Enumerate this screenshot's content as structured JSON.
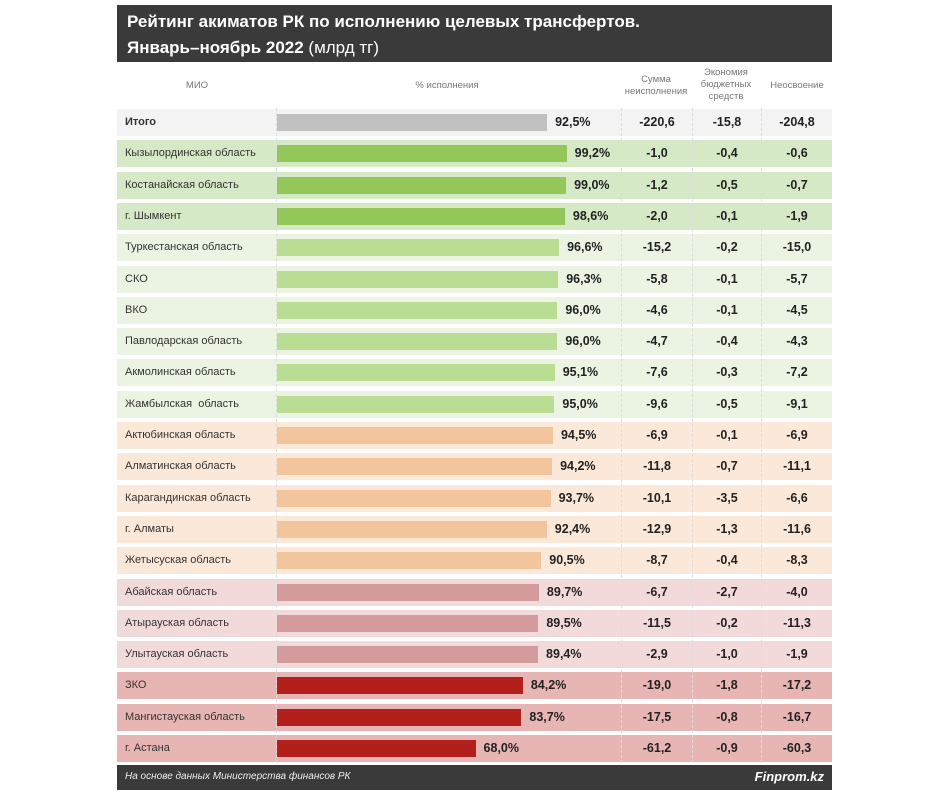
{
  "header": {
    "title_line1": "Рейтинг акиматов РК по исполнению целевых трансфертов.",
    "title_line2_bold": "Январь–ноябрь 2022",
    "title_line2_unit": " (млрд тг)"
  },
  "columns": {
    "mio": "МИО",
    "pct": "% исполнения",
    "sum": "Сумма неисполнения",
    "econ": "Экономия бюджетных средств",
    "neosv": "Неосвоение"
  },
  "colors": {
    "total": [
      "#f3f3f3",
      "#c0c0c0"
    ],
    "top": [
      "#d6e9c6",
      "#94c75a"
    ],
    "good": [
      "#ebf4e2",
      "#b9dd92"
    ],
    "mid": [
      "#fce8d8",
      "#f3c59d"
    ],
    "low": [
      "#f3dada",
      "#d39b9b"
    ],
    "bad": [
      "#e8b5b5",
      "#b3201c"
    ]
  },
  "chart_data": {
    "type": "table",
    "title": "Рейтинг акиматов РК по исполнению целевых трансфертов. Январь–ноябрь 2022 (млрд тг)",
    "rows": [
      {
        "name": "Итого",
        "pct": "92,5%",
        "value": 92.5,
        "sum": "-220,6",
        "econ": "-15,8",
        "neosv": "-204,8",
        "tier": "total"
      },
      {
        "name": "Кызылординская область",
        "pct": "99,2%",
        "value": 99.2,
        "sum": "-1,0",
        "econ": "-0,4",
        "neosv": "-0,6",
        "tier": "top"
      },
      {
        "name": "Костанайская область",
        "pct": "99,0%",
        "value": 99.0,
        "sum": "-1,2",
        "econ": "-0,5",
        "neosv": "-0,7",
        "tier": "top"
      },
      {
        "name": "г. Шымкент",
        "pct": "98,6%",
        "value": 98.6,
        "sum": "-2,0",
        "econ": "-0,1",
        "neosv": "-1,9",
        "tier": "top"
      },
      {
        "name": "Туркестанская область",
        "pct": "96,6%",
        "value": 96.6,
        "sum": "-15,2",
        "econ": "-0,2",
        "neosv": "-15,0",
        "tier": "good"
      },
      {
        "name": "СКО",
        "pct": "96,3%",
        "value": 96.3,
        "sum": "-5,8",
        "econ": "-0,1",
        "neosv": "-5,7",
        "tier": "good"
      },
      {
        "name": "ВКО",
        "pct": "96,0%",
        "value": 96.0,
        "sum": "-4,6",
        "econ": "-0,1",
        "neosv": "-4,5",
        "tier": "good"
      },
      {
        "name": "Павлодарская область",
        "pct": "96,0%",
        "value": 96.0,
        "sum": "-4,7",
        "econ": "-0,4",
        "neosv": "-4,3",
        "tier": "good"
      },
      {
        "name": "Акмолинская область",
        "pct": "95,1%",
        "value": 95.1,
        "sum": "-7,6",
        "econ": "-0,3",
        "neosv": "-7,2",
        "tier": "good"
      },
      {
        "name": "Жамбылская  область",
        "pct": "95,0%",
        "value": 95.0,
        "sum": "-9,6",
        "econ": "-0,5",
        "neosv": "-9,1",
        "tier": "good"
      },
      {
        "name": "Актюбинская область",
        "pct": "94,5%",
        "value": 94.5,
        "sum": "-6,9",
        "econ": "-0,1",
        "neosv": "-6,9",
        "tier": "mid"
      },
      {
        "name": "Алматинская область",
        "pct": "94,2%",
        "value": 94.2,
        "sum": "-11,8",
        "econ": "-0,7",
        "neosv": "-11,1",
        "tier": "mid"
      },
      {
        "name": "Карагандинская область",
        "pct": "93,7%",
        "value": 93.7,
        "sum": "-10,1",
        "econ": "-3,5",
        "neosv": "-6,6",
        "tier": "mid"
      },
      {
        "name": "г. Алматы",
        "pct": "92,4%",
        "value": 92.4,
        "sum": "-12,9",
        "econ": "-1,3",
        "neosv": "-11,6",
        "tier": "mid"
      },
      {
        "name": "Жетысуская область",
        "pct": "90,5%",
        "value": 90.5,
        "sum": "-8,7",
        "econ": "-0,4",
        "neosv": "-8,3",
        "tier": "mid"
      },
      {
        "name": "Абайская область",
        "pct": "89,7%",
        "value": 89.7,
        "sum": "-6,7",
        "econ": "-2,7",
        "neosv": "-4,0",
        "tier": "low"
      },
      {
        "name": "Атырауская область",
        "pct": "89,5%",
        "value": 89.5,
        "sum": "-11,5",
        "econ": "-0,2",
        "neosv": "-11,3",
        "tier": "low"
      },
      {
        "name": "Улытауская область",
        "pct": "89,4%",
        "value": 89.4,
        "sum": "-2,9",
        "econ": "-1,0",
        "neosv": "-1,9",
        "tier": "low"
      },
      {
        "name": "ЗКО",
        "pct": "84,2%",
        "value": 84.2,
        "sum": "-19,0",
        "econ": "-1,8",
        "neosv": "-17,2",
        "tier": "bad"
      },
      {
        "name": "Мангистауская область",
        "pct": "83,7%",
        "value": 83.7,
        "sum": "-17,5",
        "econ": "-0,8",
        "neosv": "-16,7",
        "tier": "bad"
      },
      {
        "name": "г. Астана",
        "pct": "68,0%",
        "value": 68.0,
        "sum": "-61,2",
        "econ": "-0,9",
        "neosv": "-60,3",
        "tier": "bad"
      }
    ]
  },
  "footer": {
    "source": "На основе данных Министерства финансов РК",
    "brand": "Finprom.kz"
  }
}
